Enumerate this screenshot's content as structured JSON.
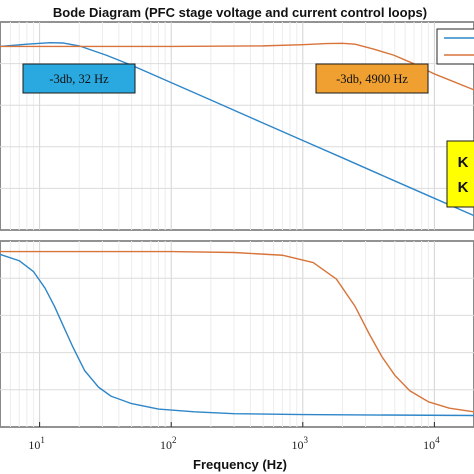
{
  "chart_data": [
    {
      "type": "line",
      "panel": "magnitude",
      "title": "Bode Diagram (PFC stage voltage and current control loops)",
      "x_scale": "log",
      "xlim": [
        5,
        20000
      ],
      "grid": true,
      "legend": "top-right",
      "series": [
        {
          "color": "#2e86c8",
          "x": [
            5,
            8,
            12,
            15,
            20,
            32,
            50,
            100,
            200,
            500,
            1000,
            2000,
            5000,
            10000,
            20000
          ],
          "y": [
            0.0,
            0.8,
            1.3,
            1.2,
            0.2,
            -3.0,
            -6.5,
            -12.5,
            -18.5,
            -26.5,
            -32.5,
            -38.5,
            -46.5,
            -52.5,
            -58.5
          ]
        },
        {
          "color": "#d8743a",
          "x": [
            5,
            10,
            100,
            500,
            1000,
            1500,
            2000,
            2500,
            3500,
            4900,
            7000,
            10000,
            20000
          ],
          "y": [
            0.0,
            0.0,
            0.0,
            0.2,
            0.6,
            1.0,
            1.1,
            0.8,
            -1.0,
            -3.0,
            -6.0,
            -9.5,
            -15.0
          ]
        }
      ],
      "annotations": [
        {
          "text": "-3db, 32 Hz",
          "color": "#29a9e0"
        },
        {
          "text": "-3db, 4900 Hz",
          "color": "#f0a030"
        },
        {
          "text": "K",
          "color": "#ffff00"
        },
        {
          "text": "K",
          "color": "#ffff00"
        }
      ]
    },
    {
      "type": "line",
      "panel": "phase",
      "x_scale": "log",
      "xlim": [
        5,
        20000
      ],
      "xlabel": "Frequency  (Hz)",
      "xticks": [
        10,
        100,
        1000,
        10000
      ],
      "xtick_labels": [
        {
          "base": "10",
          "exp": "1"
        },
        {
          "base": "10",
          "exp": "2"
        },
        {
          "base": "10",
          "exp": "3"
        },
        {
          "base": "10",
          "exp": "4"
        }
      ],
      "grid": true,
      "series": [
        {
          "color": "#2e86c8",
          "x": [
            5,
            7,
            9,
            11,
            13,
            15,
            18,
            22,
            28,
            35,
            50,
            80,
            150,
            300,
            1000,
            20000
          ],
          "y": [
            -3,
            -10,
            -22,
            -40,
            -60,
            -80,
            -105,
            -130,
            -148,
            -158,
            -166,
            -172,
            -175,
            -177,
            -178,
            -179
          ]
        },
        {
          "color": "#d8743a",
          "x": [
            5,
            100,
            300,
            700,
            1200,
            1800,
            2500,
            3200,
            4000,
            5000,
            6500,
            9000,
            13000,
            20000
          ],
          "y": [
            0,
            0,
            -1,
            -4,
            -12,
            -30,
            -60,
            -90,
            -115,
            -135,
            -152,
            -164,
            -171,
            -175
          ]
        }
      ]
    }
  ]
}
